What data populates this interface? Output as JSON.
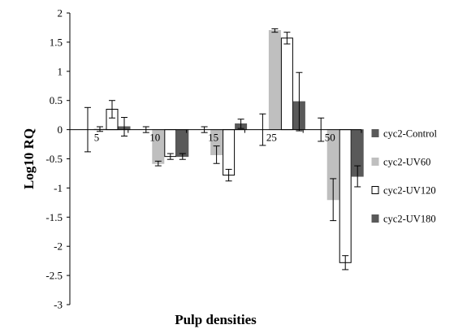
{
  "chart_data": {
    "type": "bar",
    "title": "",
    "xlabel": "Pulp densities",
    "ylabel": "Log10 RQ",
    "ylim": [
      -3,
      2
    ],
    "yticks": [
      "2",
      "1.5",
      "1",
      "0.5",
      "0",
      "-0.5",
      "-1",
      "-1.5",
      "-2",
      "-2.5",
      "-3"
    ],
    "categories": [
      "5",
      "10",
      "15",
      "25",
      "50"
    ],
    "legend_position": "right",
    "grid": false,
    "series": [
      {
        "name": "cyc2-Control",
        "color": "#595959",
        "fill": "#ffffff",
        "stroke": "#ffffff",
        "values": [
          0.0,
          0.0,
          0.0,
          0.0,
          0.0
        ],
        "errors": [
          0.38,
          0.05,
          0.05,
          0.27,
          0.2
        ]
      },
      {
        "name": "cyc2-UV60",
        "color": "#bfbfbf",
        "fill": "#bfbfbf",
        "stroke": "#bfbfbf",
        "values": [
          0.01,
          -0.58,
          -0.43,
          1.7,
          -1.2
        ],
        "errors": [
          0.04,
          0.04,
          0.15,
          0.03,
          0.36
        ]
      },
      {
        "name": "cyc2-UV120",
        "color": "#ffffff",
        "fill": "#ffffff",
        "stroke": "#000000",
        "values": [
          0.35,
          -0.46,
          -0.78,
          1.57,
          -2.28
        ],
        "errors": [
          0.15,
          0.05,
          0.1,
          0.1,
          0.12
        ]
      },
      {
        "name": "cyc2-UV180",
        "color": "#595959",
        "fill": "#595959",
        "stroke": "#595959",
        "values": [
          0.05,
          -0.46,
          0.1,
          0.48,
          -0.8
        ],
        "errors": [
          0.16,
          0.05,
          0.08,
          0.5,
          0.18
        ]
      }
    ]
  }
}
